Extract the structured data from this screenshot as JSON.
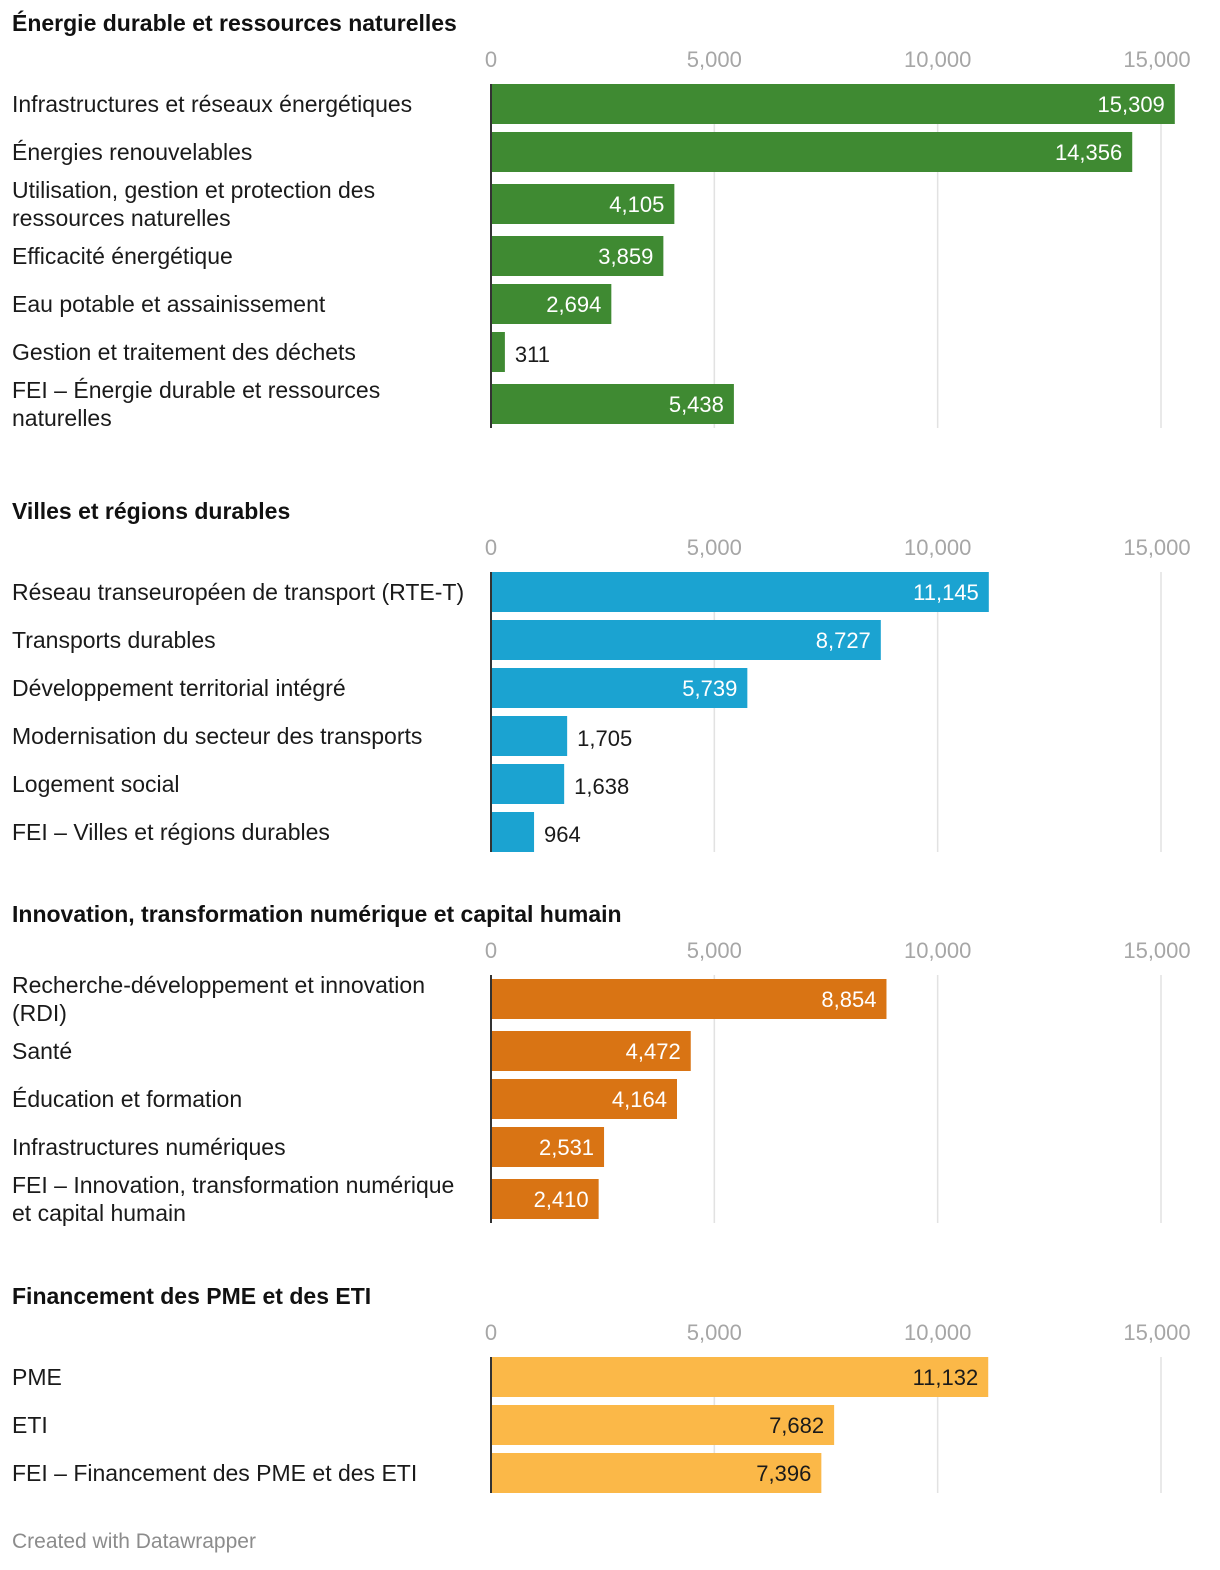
{
  "chart_data": [
    {
      "type": "bar",
      "title": "Énergie durable et ressources naturelles",
      "color": "#3f8a32",
      "xlim": [
        0,
        15000
      ],
      "ticks": [
        "0",
        "5,000",
        "10,000",
        "15,000"
      ],
      "tick_values": [
        0,
        5000,
        10000,
        15000
      ],
      "categories": [
        "Infrastructures et réseaux énergétiques",
        "Énergies renouvelables",
        "Utilisation, gestion et protection des ressources naturelles",
        "Efficacité énergétique",
        "Eau potable et assainissement",
        "Gestion et traitement des déchets",
        "FEI – Énergie durable et ressources naturelles"
      ],
      "label_lines": [
        [
          "Infrastructures et réseaux énergétiques"
        ],
        [
          "Énergies renouvelables"
        ],
        [
          "Utilisation, gestion et protection des",
          "ressources naturelles"
        ],
        [
          "Efficacité énergétique"
        ],
        [
          "Eau potable et assainissement"
        ],
        [
          "Gestion et traitement des déchets"
        ],
        [
          "FEI – Énergie durable et ressources",
          "naturelles"
        ]
      ],
      "values": [
        15309,
        14356,
        4105,
        3859,
        2694,
        311,
        5438
      ],
      "value_labels": [
        "15,309",
        "14,356",
        "4,105",
        "3,859",
        "2,694",
        "311",
        "5,438"
      ]
    },
    {
      "type": "bar",
      "title": "Villes et régions durables",
      "color": "#1ba3d1",
      "xlim": [
        0,
        15000
      ],
      "ticks": [
        "0",
        "5,000",
        "10,000",
        "15,000"
      ],
      "tick_values": [
        0,
        5000,
        10000,
        15000
      ],
      "categories": [
        "Réseau transeuropéen de transport (RTE-T)",
        "Transports durables",
        "Développement territorial intégré",
        "Modernisation du secteur des transports",
        "Logement social",
        "FEI – Villes et régions durables"
      ],
      "label_lines": [
        [
          "Réseau transeuropéen de transport (RTE-T)"
        ],
        [
          "Transports durables"
        ],
        [
          "Développement territorial intégré"
        ],
        [
          "Modernisation du secteur des transports"
        ],
        [
          "Logement social"
        ],
        [
          "FEI – Villes et régions durables"
        ]
      ],
      "values": [
        11145,
        8727,
        5739,
        1705,
        1638,
        964
      ],
      "value_labels": [
        "11,145",
        "8,727",
        "5,739",
        "1,705",
        "1,638",
        "964"
      ]
    },
    {
      "type": "bar",
      "title": "Innovation, transformation numérique et capital humain",
      "color": "#d97414",
      "xlim": [
        0,
        15000
      ],
      "ticks": [
        "0",
        "5,000",
        "10,000",
        "15,000"
      ],
      "tick_values": [
        0,
        5000,
        10000,
        15000
      ],
      "categories": [
        "Recherche-développement et innovation (RDI)",
        "Santé",
        "Éducation et formation",
        "Infrastructures numériques",
        "FEI – Innovation, transformation numérique et capital humain"
      ],
      "label_lines": [
        [
          "Recherche-développement et innovation",
          "(RDI)"
        ],
        [
          "Santé"
        ],
        [
          "Éducation et formation"
        ],
        [
          "Infrastructures numériques"
        ],
        [
          "FEI – Innovation, transformation numérique",
          "et capital humain"
        ]
      ],
      "values": [
        8854,
        4472,
        4164,
        2531,
        2410
      ],
      "value_labels": [
        "8,854",
        "4,472",
        "4,164",
        "2,531",
        "2,410"
      ]
    },
    {
      "type": "bar",
      "title": "Financement des PME et des ETI",
      "color": "#fbb848",
      "label_color": "dark",
      "xlim": [
        0,
        15000
      ],
      "ticks": [
        "0",
        "5,000",
        "10,000",
        "15,000"
      ],
      "tick_values": [
        0,
        5000,
        10000,
        15000
      ],
      "categories": [
        "PME",
        "ETI",
        "FEI – Financement des PME et des ETI"
      ],
      "label_lines": [
        [
          "PME"
        ],
        [
          "ETI"
        ],
        [
          "FEI – Financement des PME et des ETI"
        ]
      ],
      "values": [
        11132,
        7682,
        7396
      ],
      "value_labels": [
        "11,132",
        "7,682",
        "7,396"
      ]
    }
  ],
  "footer": {
    "credit": "Created with Datawrapper"
  }
}
